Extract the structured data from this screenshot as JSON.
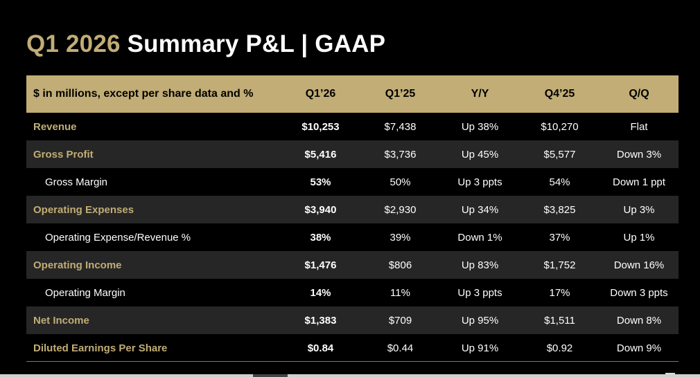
{
  "title": {
    "part_gold": "Q1 2026",
    "part_white": "Summary P&L  |  GAAP"
  },
  "table": {
    "headers": [
      "$ in millions, except per share data and %",
      "Q1’26",
      "Q1’25",
      "Y/Y",
      "Q4’25",
      "Q/Q"
    ],
    "rows": [
      {
        "label": "Revenue",
        "style": "gold",
        "q126": "$10,253",
        "q125": "$7,438",
        "yy": "Up 38%",
        "q425": "$10,270",
        "qq": "Flat"
      },
      {
        "label": "Gross Profit",
        "style": "gold",
        "q126": "$5,416",
        "q125": "$3,736",
        "yy": "Up 45%",
        "q425": "$5,577",
        "qq": "Down 3%"
      },
      {
        "label": "Gross Margin",
        "style": "sub",
        "q126": "53%",
        "q125": "50%",
        "yy": "Up 3 ppts",
        "q425": "54%",
        "qq": "Down 1 ppt"
      },
      {
        "label": "Operating Expenses",
        "style": "gold",
        "q126": "$3,940",
        "q125": "$2,930",
        "yy": "Up 34%",
        "q425": "$3,825",
        "qq": "Up 3%"
      },
      {
        "label": "Operating Expense/Revenue %",
        "style": "sub",
        "q126": "38%",
        "q125": "39%",
        "yy": "Down 1%",
        "q425": "37%",
        "qq": "Up 1%"
      },
      {
        "label": "Operating Income",
        "style": "gold",
        "q126": "$1,476",
        "q125": "$806",
        "yy": "Up 83%",
        "q425": "$1,752",
        "qq": "Down 16%"
      },
      {
        "label": "Operating Margin",
        "style": "sub",
        "q126": "14%",
        "q125": "11%",
        "yy": "Up 3 ppts",
        "q425": "17%",
        "qq": "Down 3 ppts"
      },
      {
        "label": "Net Income",
        "style": "gold",
        "q126": "$1,383",
        "q125": "$709",
        "yy": "Up 95%",
        "q425": "$1,511",
        "qq": "Down 8%"
      },
      {
        "label": "Diluted Earnings Per Share",
        "style": "gold",
        "q126": "$0.84",
        "q125": "$0.44",
        "yy": "Up 91%",
        "q425": "$0.92",
        "qq": "Down 9%"
      }
    ]
  },
  "colors": {
    "gold": "#c1ad75",
    "highlight_column": "#595959",
    "row_alt": "#262626",
    "background": "#000000"
  }
}
